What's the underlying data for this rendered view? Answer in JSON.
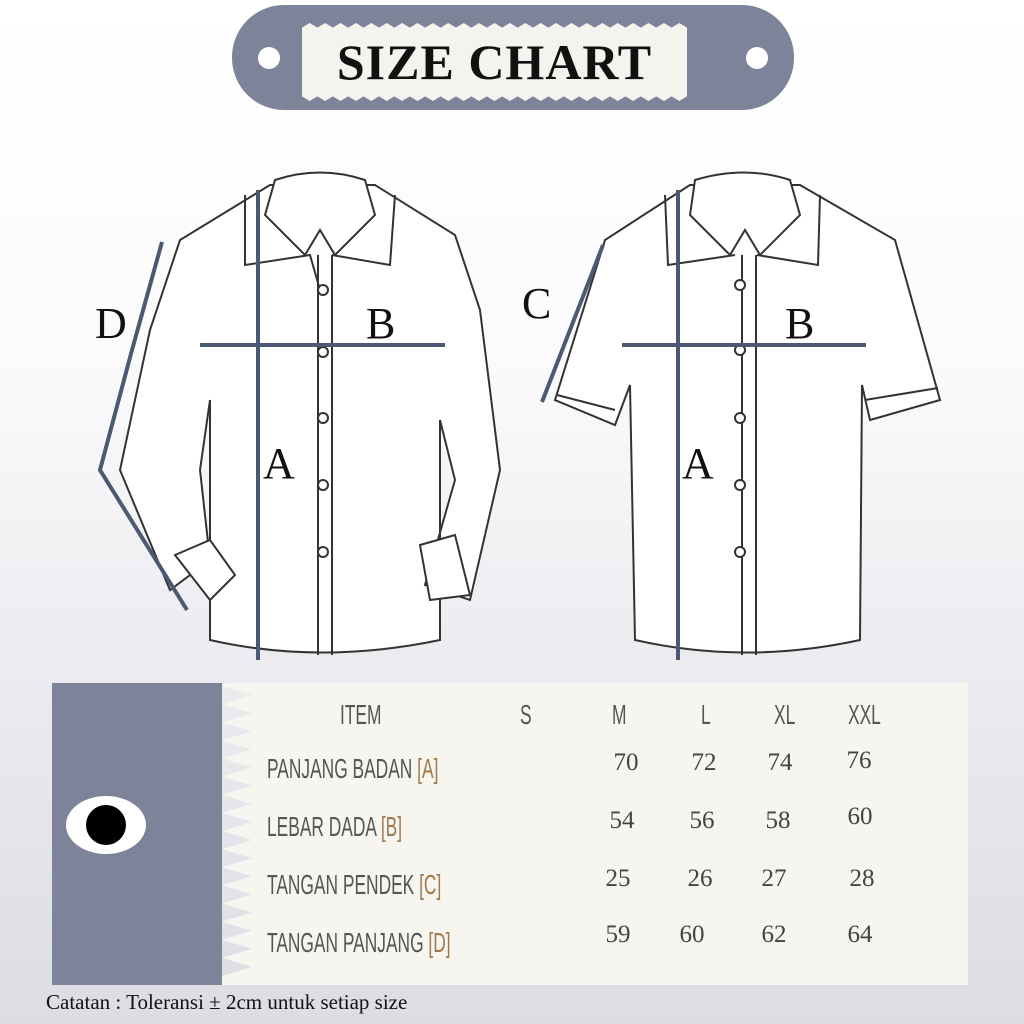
{
  "title": "SIZE CHART",
  "labels": {
    "a": "A",
    "b": "B",
    "c": "C",
    "d": "D"
  },
  "table": {
    "headers": [
      "ITEM",
      "S",
      "M",
      "L",
      "XL",
      "XXL"
    ],
    "rows": [
      {
        "item": "PANJANG BADAN",
        "code": "[A]",
        "values": [
          "",
          "70",
          "72",
          "74",
          "76"
        ]
      },
      {
        "item": "LEBAR DADA",
        "code": "[B]",
        "values": [
          "",
          "54",
          "56",
          "58",
          "60"
        ]
      },
      {
        "item": "TANGAN PENDEK",
        "code": "[C]",
        "values": [
          "",
          "25",
          "26",
          "27",
          "28"
        ]
      },
      {
        "item": "TANGAN PANJANG",
        "code": "[D]",
        "values": [
          "",
          "59",
          "60",
          "62",
          "64"
        ]
      }
    ]
  },
  "note": "Catatan : Toleransi  ± 2cm untuk setiap size",
  "colors": {
    "tag": "#7d8499",
    "measure_line": "#4b5a72",
    "bracket": "#a07a4e",
    "table_bg": "#f6f5ef"
  }
}
